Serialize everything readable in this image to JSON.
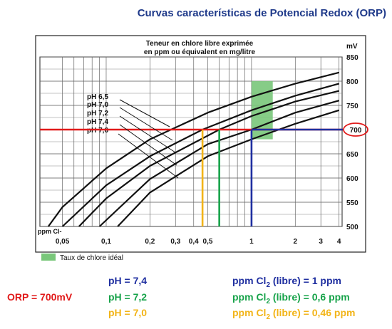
{
  "title": "Curvas características de Potencial Redox (ORP)",
  "colors": {
    "red": "#e11a1a",
    "blue": "#1f2fa0",
    "green": "#17a34a",
    "orange": "#f2b418",
    "ideal": "#79c77a"
  },
  "chart_data": {
    "type": "line",
    "header_line1": "Teneur en chlore libre exprimée",
    "header_line2": "en ppm ou équivalent en mg/litre",
    "ylabel": "mV",
    "xlabel": "ppm Cl-",
    "xscale": "log",
    "xlim": [
      0.035,
      4.2
    ],
    "ylim": [
      500,
      850
    ],
    "x_ticks": [
      {
        "value": 0.05,
        "label": "0,05"
      },
      {
        "value": 0.1,
        "label": "0,1"
      },
      {
        "value": 0.2,
        "label": "0,2"
      },
      {
        "value": 0.3,
        "label": "0,3"
      },
      {
        "value": 0.4,
        "label": "0,4"
      },
      {
        "value": 0.5,
        "label": "0,5"
      },
      {
        "value": 1,
        "label": "1"
      },
      {
        "value": 2,
        "label": "2"
      },
      {
        "value": 3,
        "label": "3"
      },
      {
        "value": 4,
        "label": "4"
      }
    ],
    "y_ticks": [
      {
        "value": 500,
        "label": "500"
      },
      {
        "value": 550,
        "label": "550"
      },
      {
        "value": 600,
        "label": "600"
      },
      {
        "value": 650,
        "label": "650"
      },
      {
        "value": 700,
        "label": "700"
      },
      {
        "value": 750,
        "label": "750"
      },
      {
        "value": 800,
        "label": "800"
      },
      {
        "value": 850,
        "label": "850"
      }
    ],
    "grid": true,
    "series": [
      {
        "name": "pH 6,5",
        "x": [
          0.04,
          0.05,
          0.1,
          0.2,
          0.5,
          1,
          2,
          4
        ],
        "y": [
          500,
          540,
          620,
          680,
          735,
          768,
          795,
          818
        ]
      },
      {
        "name": "pH 7,0",
        "x": [
          0.05,
          0.1,
          0.2,
          0.46,
          1,
          2,
          4
        ],
        "y": [
          500,
          585,
          645,
          700,
          740,
          770,
          795
        ]
      },
      {
        "name": "pH 7,2",
        "x": [
          0.065,
          0.1,
          0.2,
          0.6,
          1,
          2,
          4
        ],
        "y": [
          500,
          558,
          625,
          700,
          728,
          758,
          780
        ]
      },
      {
        "name": "pH 7,4",
        "x": [
          0.09,
          0.2,
          0.5,
          1,
          2,
          4
        ],
        "y": [
          500,
          598,
          670,
          700,
          735,
          760
        ]
      },
      {
        "name": "pH 7,6",
        "x": [
          0.12,
          0.2,
          0.5,
          1,
          2,
          4
        ],
        "y": [
          500,
          570,
          645,
          680,
          712,
          740
        ]
      }
    ],
    "ideal_zone": {
      "label": "Taux de chlore idéal",
      "x": [
        1,
        1.4
      ],
      "y": [
        680,
        800
      ]
    },
    "reference_orp": 700,
    "readings": [
      {
        "ph": "pH = 7,4",
        "ppm": 1
      },
      {
        "ph": "pH = 7,2",
        "ppm": 0.6
      },
      {
        "ph": "pH = 7,0",
        "ppm": 0.46
      }
    ]
  },
  "footer": {
    "orp": "ORP = 700mV",
    "ph_blue": "pH  = 7,4",
    "ph_green": "pH  = 7,2",
    "ph_orange": "pH  = 7,0",
    "ppm_prefix": "ppm Cl",
    "ppm_sub": "2",
    "ppm_blue": " (libre) = 1 ppm",
    "ppm_green": " (libre) = 0,6 ppm",
    "ppm_orange": " (libre) = 0,46 ppm"
  }
}
